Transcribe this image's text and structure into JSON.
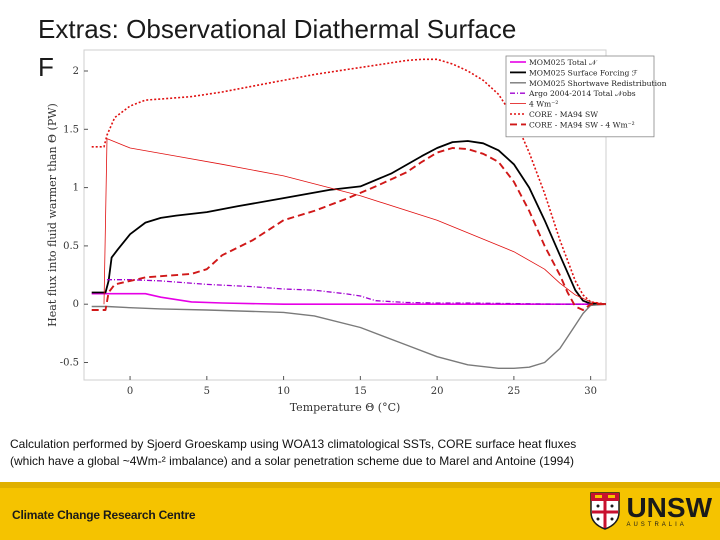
{
  "slide": {
    "title_line1": "Extras: Observational Diathermal Surface",
    "title_line2": "F"
  },
  "caption": {
    "line1": "Calculation performed by Sjoerd Groeskamp using WOA13 climatological SSTs, CORE surface heat fluxes",
    "line2": "(which have a global ~4Wm-² imbalance) and a solar penetration scheme due to Marel and Antoine (1994)"
  },
  "footer": {
    "org": "Climate Change Research Centre",
    "logo_text": "UNSW",
    "logo_sub": "AUSTRALIA"
  },
  "colors": {
    "black": "#000000",
    "magenta": "#e600e6",
    "gray": "#7a7a7a",
    "purple": "#a000d0",
    "red": "#e01010",
    "dashred": "#d01818",
    "yellow": "#f5c300"
  },
  "chart_data": {
    "type": "line",
    "xlabel": "Temperature Θ (°C)",
    "ylabel": "Heat flux into fluid warmer than Θ (PW)",
    "xlim": [
      -3,
      31
    ],
    "ylim": [
      -0.65,
      2.18
    ],
    "xticks": [
      0,
      5,
      10,
      15,
      20,
      25,
      30
    ],
    "yticks": [
      -0.5,
      0,
      0.5,
      1,
      1.5,
      2
    ],
    "xtick_labels": [
      "0",
      "5",
      "10",
      "15",
      "20",
      "25",
      "30"
    ],
    "ytick_labels": [
      "-0.5",
      "0",
      "0.5",
      "1",
      "1.5",
      "2"
    ],
    "legend_position": "top-right",
    "series": [
      {
        "name": "MOM025 Total 𝒩",
        "color": "magenta",
        "style": "solid",
        "width": 1.6,
        "x": [
          -2.5,
          -1.5,
          0,
          1,
          2,
          4,
          6,
          10,
          15,
          20,
          25,
          28,
          29,
          30,
          31
        ],
        "y": [
          0.09,
          0.09,
          0.09,
          0.09,
          0.06,
          0.02,
          0.01,
          0.0,
          0.0,
          0.0,
          0.0,
          0.0,
          0.0,
          0.0,
          0.0
        ]
      },
      {
        "name": "MOM025 Surface Forcing ℱ",
        "color": "black",
        "style": "solid",
        "width": 1.8,
        "x": [
          -2.5,
          -1.6,
          -1.4,
          -1.2,
          -0.8,
          0,
          1,
          2,
          3,
          5,
          7,
          10,
          13,
          15,
          17,
          19,
          20,
          21,
          22,
          23,
          24,
          25,
          26,
          27,
          28,
          29,
          29.5,
          30,
          31
        ],
        "y": [
          0.1,
          0.1,
          0.2,
          0.4,
          0.47,
          0.6,
          0.7,
          0.74,
          0.76,
          0.79,
          0.84,
          0.91,
          0.98,
          1.01,
          1.12,
          1.27,
          1.34,
          1.39,
          1.4,
          1.38,
          1.32,
          1.2,
          1.0,
          0.72,
          0.42,
          0.12,
          0.03,
          0.005,
          0.0
        ]
      },
      {
        "name": "MOM025 Shortwave Redistribution",
        "color": "gray",
        "style": "solid",
        "width": 1.4,
        "x": [
          -2.5,
          -1.5,
          0,
          2,
          5,
          10,
          12,
          15,
          18,
          20,
          22,
          24,
          25,
          26,
          27,
          28,
          29,
          29.5,
          30,
          31
        ],
        "y": [
          -0.02,
          -0.02,
          -0.03,
          -0.04,
          -0.05,
          -0.07,
          -0.1,
          -0.2,
          -0.35,
          -0.45,
          -0.52,
          -0.55,
          -0.55,
          -0.54,
          -0.5,
          -0.38,
          -0.18,
          -0.08,
          -0.01,
          0.0
        ]
      },
      {
        "name": "Argo 2004-2014 Total 𝒩obs",
        "color": "purple",
        "style": "dashdot",
        "width": 1.3,
        "x": [
          -1.5,
          0,
          2,
          5,
          8,
          10,
          12,
          14,
          15,
          16,
          18,
          20,
          22,
          25,
          28,
          30
        ],
        "y": [
          0.21,
          0.21,
          0.2,
          0.17,
          0.15,
          0.13,
          0.12,
          0.09,
          0.07,
          0.03,
          0.015,
          0.01,
          0.01,
          0.005,
          0.0,
          0.0
        ]
      },
      {
        "name": "4 Wm⁻²",
        "color": "red",
        "style": "thin",
        "width": 0.8,
        "x": [
          -1.7,
          -1.5,
          0,
          3,
          6,
          10,
          15,
          20,
          25,
          27,
          28,
          29,
          30,
          31
        ],
        "y": [
          0.0,
          1.42,
          1.34,
          1.27,
          1.2,
          1.1,
          0.93,
          0.72,
          0.45,
          0.3,
          0.18,
          0.08,
          0.02,
          0.0
        ]
      },
      {
        "name": "CORE - MA94 SW",
        "color": "red",
        "style": "dotted",
        "width": 1.6,
        "x": [
          -2.5,
          -1.7,
          -1.5,
          -1,
          0,
          1,
          2,
          4,
          6,
          8,
          10,
          12,
          14,
          16,
          18,
          19,
          20,
          21,
          22,
          23,
          24,
          25,
          26,
          27,
          28,
          29,
          29.5,
          30,
          31
        ],
        "y": [
          1.35,
          1.35,
          1.45,
          1.6,
          1.7,
          1.75,
          1.76,
          1.78,
          1.82,
          1.87,
          1.92,
          1.97,
          2.01,
          2.05,
          2.09,
          2.1,
          2.1,
          2.06,
          2.0,
          1.92,
          1.8,
          1.6,
          1.3,
          0.95,
          0.55,
          0.2,
          0.08,
          0.02,
          0.0
        ]
      },
      {
        "name": "CORE - MA94 SW - 4 Wm⁻²",
        "color": "dashred",
        "style": "dashed",
        "width": 1.9,
        "x": [
          -2.5,
          -1.6,
          -1.4,
          -1,
          0,
          1,
          2,
          4,
          5,
          6,
          8,
          10,
          12,
          14,
          16,
          18,
          19,
          20,
          21,
          22,
          23,
          24,
          25,
          26,
          27,
          28,
          28.5,
          29,
          29.5,
          30,
          31
        ],
        "y": [
          -0.05,
          -0.05,
          0.1,
          0.17,
          0.2,
          0.23,
          0.24,
          0.26,
          0.3,
          0.42,
          0.55,
          0.72,
          0.8,
          0.9,
          1.01,
          1.13,
          1.22,
          1.3,
          1.34,
          1.33,
          1.29,
          1.22,
          1.05,
          0.8,
          0.5,
          0.25,
          0.1,
          -0.02,
          -0.05,
          0.0,
          0.0
        ]
      }
    ]
  }
}
